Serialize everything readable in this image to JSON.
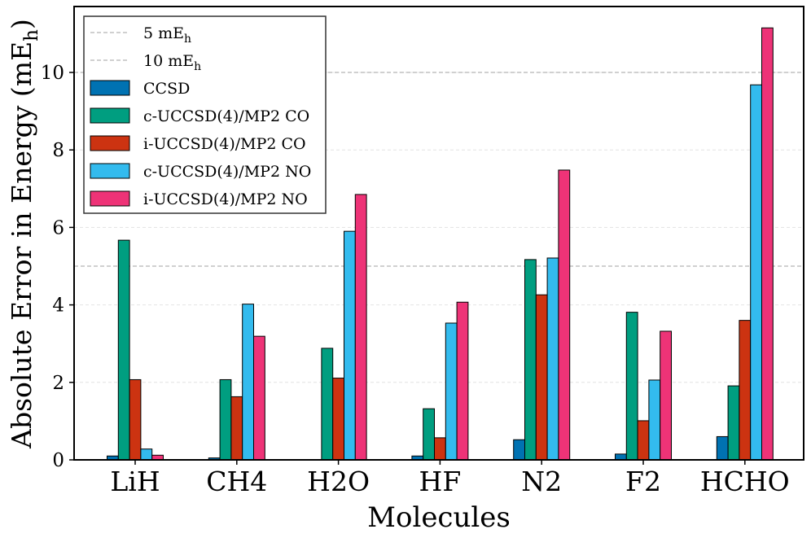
{
  "chart_data": {
    "type": "bar",
    "title": "",
    "xlabel": "Molecules",
    "ylabel": "Absolute Error in Energy (mE",
    "ylabel_sub": "h",
    "ylabel_close": ")",
    "ylim": [
      0,
      11.7
    ],
    "yticks": [
      0,
      2,
      4,
      6,
      8,
      10
    ],
    "categories": [
      "LiH",
      "CH4",
      "H2O",
      "HF",
      "N2",
      "F2",
      "HCHO"
    ],
    "reference_lines": [
      {
        "label": "5 mE",
        "label_sub": "h",
        "value": 5
      },
      {
        "label": "10 mE",
        "label_sub": "h",
        "value": 10
      }
    ],
    "series": [
      {
        "name": "CCSD",
        "color": "#0072B2",
        "values": [
          0.1,
          0.05,
          0.0,
          0.1,
          0.52,
          0.15,
          0.6
        ]
      },
      {
        "name": "c-UCCSD(4)/MP2 CO",
        "color": "#009E80",
        "values": [
          5.67,
          2.07,
          2.88,
          1.32,
          5.17,
          3.81,
          1.91
        ]
      },
      {
        "name": "i-UCCSD(4)/MP2 CO",
        "color": "#CC3311",
        "values": [
          2.07,
          1.63,
          2.11,
          0.57,
          4.26,
          1.01,
          3.6
        ]
      },
      {
        "name": "c-UCCSD(4)/MP2 NO",
        "color": "#33BBEE",
        "values": [
          0.28,
          4.02,
          5.9,
          3.53,
          5.21,
          2.06,
          9.68
        ]
      },
      {
        "name": "i-UCCSD(4)/MP2 NO",
        "color": "#EE3377",
        "values": [
          0.12,
          3.19,
          6.85,
          4.07,
          7.48,
          3.32,
          11.15
        ]
      }
    ],
    "legend_position": "upper-left",
    "grid": true
  }
}
